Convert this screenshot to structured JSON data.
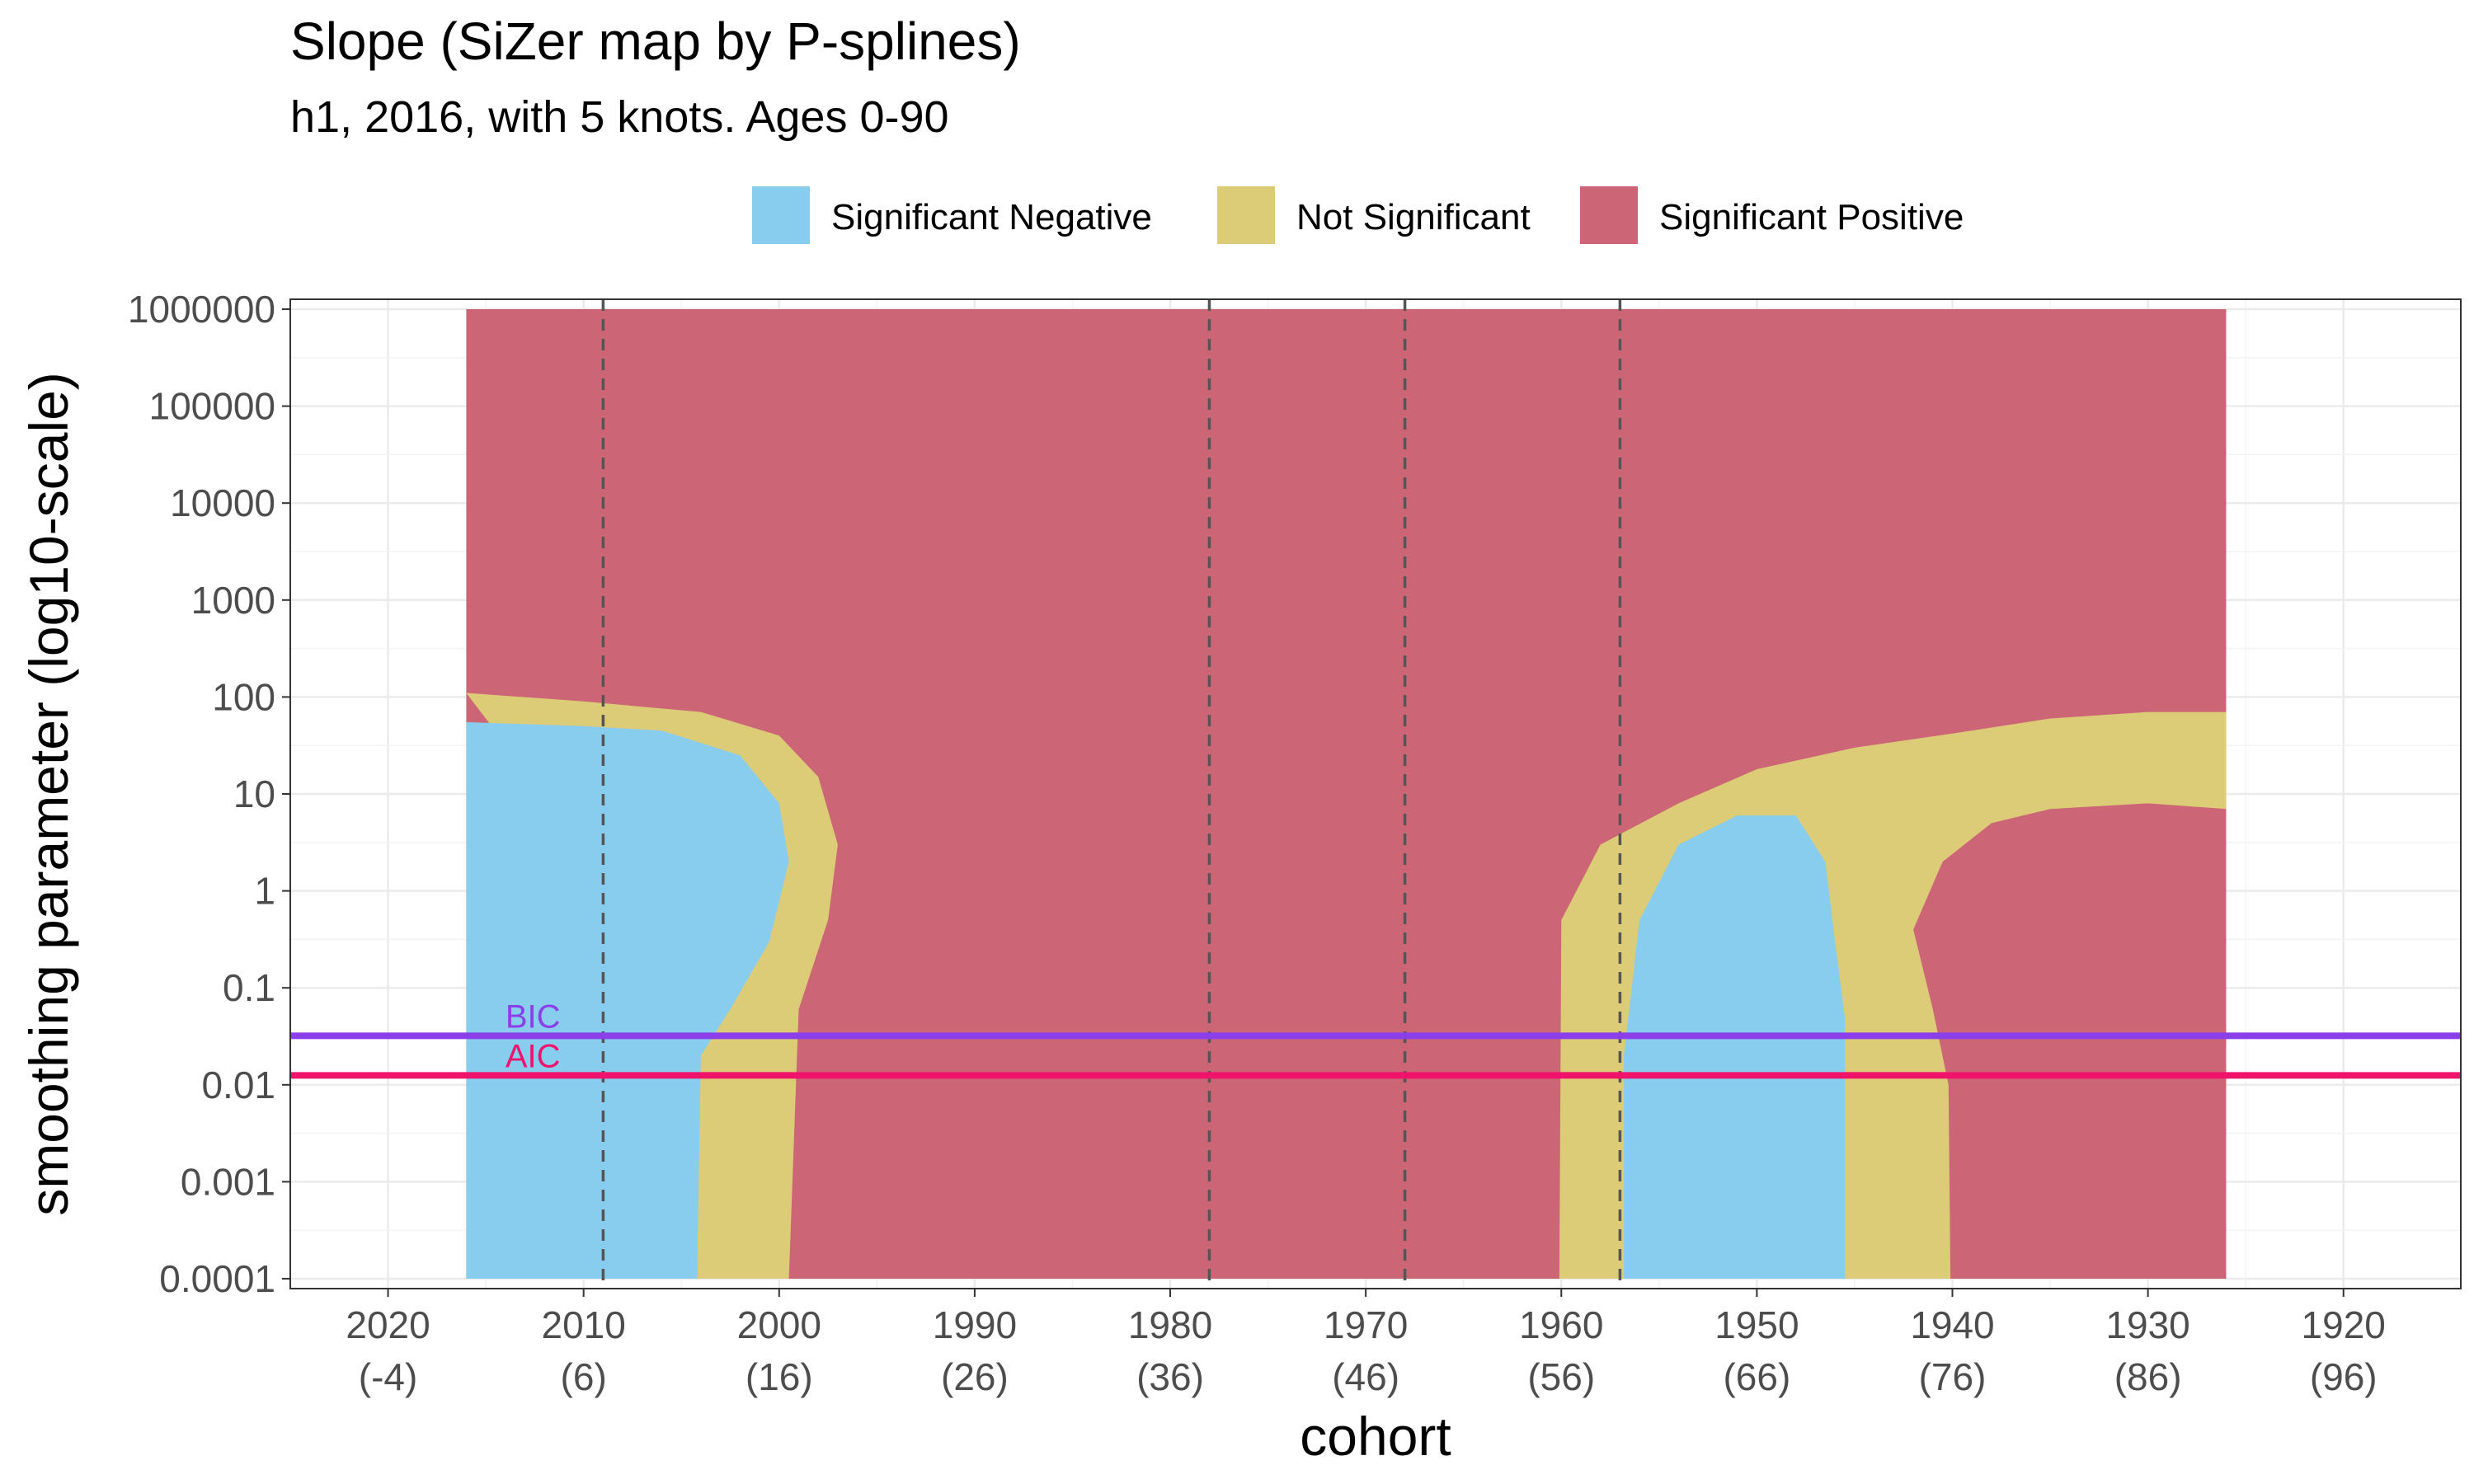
{
  "chart_data": {
    "type": "heatmap",
    "title": "Slope (SiZer map by P-splines)",
    "subtitle": "h1, 2016, with 5 knots. Ages 0-90",
    "xlabel": "cohort",
    "ylabel": "smoothing parameter (log10-scale)",
    "x_reversed": true,
    "xlim": [
      2025,
      1914
    ],
    "x_ticks": [
      {
        "value": 2020,
        "line1": "2020",
        "line2": "(-4)"
      },
      {
        "value": 2010,
        "line1": "2010",
        "line2": "(6)"
      },
      {
        "value": 2000,
        "line1": "2000",
        "line2": "(16)"
      },
      {
        "value": 1990,
        "line1": "1990",
        "line2": "(26)"
      },
      {
        "value": 1980,
        "line1": "1980",
        "line2": "(36)"
      },
      {
        "value": 1970,
        "line1": "1970",
        "line2": "(46)"
      },
      {
        "value": 1960,
        "line1": "1960",
        "line2": "(56)"
      },
      {
        "value": 1950,
        "line1": "1950",
        "line2": "(66)"
      },
      {
        "value": 1940,
        "line1": "1940",
        "line2": "(76)"
      },
      {
        "value": 1930,
        "line1": "1930",
        "line2": "(86)"
      },
      {
        "value": 1920,
        "line1": "1920",
        "line2": "(96)"
      }
    ],
    "y_scale": "log10",
    "ylim": [
      0.0001,
      1000000
    ],
    "y_ticks": [
      {
        "value": 0.0001,
        "label": "0.0001"
      },
      {
        "value": 0.001,
        "label": "0.001"
      },
      {
        "value": 0.01,
        "label": "0.01"
      },
      {
        "value": 0.1,
        "label": "0.1"
      },
      {
        "value": 1,
        "label": "1"
      },
      {
        "value": 10,
        "label": "10"
      },
      {
        "value": 100,
        "label": "100"
      },
      {
        "value": 1000,
        "label": "1000"
      },
      {
        "value": 10000,
        "label": "10000"
      },
      {
        "value": 100000,
        "label": "100000"
      },
      {
        "value": 1000000,
        "label": "1000000"
      }
    ],
    "grid": true,
    "legend": {
      "position": "top",
      "entries": [
        {
          "key": "neg",
          "label": "Significant Negative",
          "color": "#88CCEE"
        },
        {
          "key": "ns",
          "label": "Not Significant",
          "color": "#DDCC77"
        },
        {
          "key": "pos",
          "label": "Significant Positive",
          "color": "#CC6677"
        }
      ]
    },
    "data_extent": {
      "x": [
        2016,
        1926
      ],
      "y": [
        0.0001,
        1000000
      ]
    },
    "regions": {
      "description_free": true,
      "background": "pos",
      "blobs": [
        {
          "category": "ns",
          "polygon": [
            [
              2016,
              110
            ],
            [
              2010,
              90
            ],
            [
              2004,
              70
            ],
            [
              2000,
              40
            ],
            [
              1998,
              15
            ],
            [
              1997,
              3
            ],
            [
              1997.5,
              0.5
            ],
            [
              1999,
              0.06
            ],
            [
              1999.5,
              0.0001
            ],
            [
              2004.2,
              0.0001
            ],
            [
              2004.2,
              0.02
            ],
            [
              2004.5,
              0.1
            ]
          ]
        },
        {
          "category": "neg",
          "polygon": [
            [
              2016,
              55
            ],
            [
              2010,
              50
            ],
            [
              2006,
              45
            ],
            [
              2002,
              25
            ],
            [
              2000,
              8
            ],
            [
              1999.5,
              2
            ],
            [
              2000.5,
              0.3
            ],
            [
              2002.5,
              0.06
            ],
            [
              2004,
              0.02
            ],
            [
              2004.2,
              0.0001
            ],
            [
              2016,
              0.0001
            ]
          ]
        },
        {
          "category": "ns",
          "polygon": [
            [
              1926,
              70
            ],
            [
              1930,
              70
            ],
            [
              1935,
              60
            ],
            [
              1940,
              42
            ],
            [
              1945,
              30
            ],
            [
              1950,
              18
            ],
            [
              1954,
              8
            ],
            [
              1958,
              3
            ],
            [
              1960,
              0.5
            ],
            [
              1960.1,
              0.0001
            ],
            [
              1940.1,
              0.0001
            ],
            [
              1940.2,
              0.01
            ],
            [
              1941,
              0.06
            ],
            [
              1942,
              0.4
            ],
            [
              1940.5,
              2
            ],
            [
              1938,
              5
            ],
            [
              1935,
              7
            ],
            [
              1930,
              8
            ],
            [
              1926,
              7
            ]
          ]
        },
        {
          "category": "neg",
          "polygon": [
            [
              1956.8,
              0.0001
            ],
            [
              1956.8,
              0.02
            ],
            [
              1956,
              0.5
            ],
            [
              1954,
              3
            ],
            [
              1951,
              6
            ],
            [
              1948,
              6
            ],
            [
              1946.5,
              2
            ],
            [
              1946,
              0.3
            ],
            [
              1945.5,
              0.05
            ],
            [
              1945.5,
              0.0001
            ]
          ]
        }
      ]
    },
    "vertical_lines": [
      2009,
      1978,
      1968,
      1957
    ],
    "hlines": [
      {
        "label": "BIC",
        "y": 0.032,
        "color": "#8A3FE8"
      },
      {
        "label": "AIC",
        "y": 0.0125,
        "color": "#F0136C"
      }
    ]
  }
}
